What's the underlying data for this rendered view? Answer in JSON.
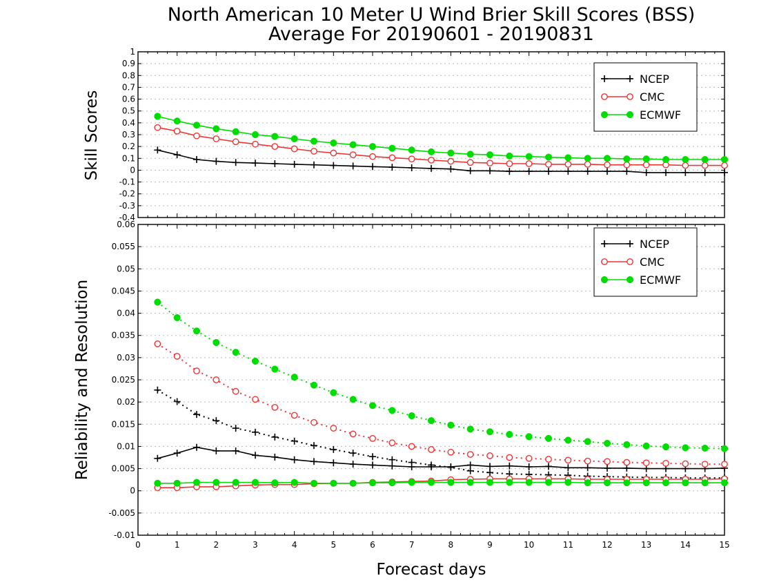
{
  "chart_data": [
    {
      "type": "line",
      "title": "North American 10 Meter U Wind Brier Skill Scores (BSS)",
      "subtitle": "Average For 20190601 - 20190831",
      "xlabel": "",
      "ylabel": "Skill Scores",
      "xlim": [
        0,
        15
      ],
      "ylim": [
        -0.4,
        1
      ],
      "x_ticks": [
        0,
        1,
        2,
        3,
        4,
        5,
        6,
        7,
        8,
        9,
        10,
        11,
        12,
        13,
        14,
        15
      ],
      "y_ticks": [
        -0.4,
        -0.3,
        -0.2,
        -0.1,
        0,
        0.1,
        0.2,
        0.3,
        0.4,
        0.5,
        0.6,
        0.7,
        0.8,
        0.9,
        1
      ],
      "y_tick_labels": [
        "-0.4",
        "-0.3",
        "-0.2",
        "-0.1",
        "0",
        "0.1",
        "0.2",
        "0.3",
        "0.4",
        "0.5",
        "0.6",
        "0.7",
        "0.8",
        "0.9",
        "1"
      ],
      "grid": true,
      "legend_position": "top-right",
      "x": [
        0.5,
        1,
        1.5,
        2,
        2.5,
        3,
        3.5,
        4,
        4.5,
        5,
        5.5,
        6,
        6.5,
        7,
        7.5,
        8,
        8.5,
        9,
        9.5,
        10,
        10.5,
        11,
        11.5,
        12,
        12.5,
        13,
        13.5,
        14,
        14.5,
        15
      ],
      "series": [
        {
          "name": "NCEP",
          "color": "#000000",
          "marker": "plus",
          "line": "solid",
          "values": [
            0.17,
            0.13,
            0.09,
            0.075,
            0.065,
            0.06,
            0.055,
            0.05,
            0.045,
            0.04,
            0.035,
            0.03,
            0.025,
            0.02,
            0.015,
            0.01,
            -0.005,
            -0.005,
            -0.01,
            -0.01,
            -0.01,
            -0.01,
            -0.01,
            -0.01,
            -0.01,
            -0.02,
            -0.02,
            -0.02,
            -0.02,
            -0.02
          ]
        },
        {
          "name": "CMC",
          "color": "#ee3333",
          "marker": "open-circle",
          "line": "solid",
          "values": [
            0.36,
            0.33,
            0.29,
            0.265,
            0.24,
            0.22,
            0.2,
            0.18,
            0.16,
            0.145,
            0.13,
            0.115,
            0.105,
            0.095,
            0.085,
            0.075,
            0.065,
            0.06,
            0.055,
            0.055,
            0.05,
            0.05,
            0.05,
            0.045,
            0.045,
            0.045,
            0.045,
            0.04,
            0.04,
            0.04
          ]
        },
        {
          "name": "ECMWF",
          "color": "#00dd00",
          "marker": "filled-circle",
          "line": "solid",
          "values": [
            0.455,
            0.415,
            0.38,
            0.35,
            0.325,
            0.3,
            0.285,
            0.265,
            0.245,
            0.23,
            0.215,
            0.2,
            0.185,
            0.17,
            0.155,
            0.145,
            0.135,
            0.13,
            0.12,
            0.115,
            0.11,
            0.105,
            0.1,
            0.1,
            0.095,
            0.095,
            0.09,
            0.09,
            0.09,
            0.09
          ]
        }
      ]
    },
    {
      "type": "line",
      "title": "",
      "xlabel": "Forecast days",
      "ylabel": "Reliability and Resolution",
      "xlim": [
        0,
        15
      ],
      "ylim": [
        -0.01,
        0.06
      ],
      "x_ticks": [
        0,
        1,
        2,
        3,
        4,
        5,
        6,
        7,
        8,
        9,
        10,
        11,
        12,
        13,
        14,
        15
      ],
      "y_ticks": [
        -0.01,
        -0.005,
        0,
        0.005,
        0.01,
        0.015,
        0.02,
        0.025,
        0.03,
        0.035,
        0.04,
        0.045,
        0.05,
        0.055,
        0.06
      ],
      "y_tick_labels": [
        "-0.01",
        "-0.005",
        "0",
        "0.005",
        "0.01",
        "0.015",
        "0.02",
        "0.025",
        "0.03",
        "0.035",
        "0.04",
        "0.045",
        "0.05",
        "0.055",
        "0.06"
      ],
      "grid": true,
      "legend_position": "top-right",
      "x": [
        0.5,
        1,
        1.5,
        2,
        2.5,
        3,
        3.5,
        4,
        4.5,
        5,
        5.5,
        6,
        6.5,
        7,
        7.5,
        8,
        8.5,
        9,
        9.5,
        10,
        10.5,
        11,
        11.5,
        12,
        12.5,
        13,
        13.5,
        14,
        14.5,
        15
      ],
      "series": [
        {
          "name": "NCEP",
          "color": "#000000",
          "marker": "plus",
          "line": "solid",
          "values": [
            0.0073,
            0.0085,
            0.0098,
            0.009,
            0.009,
            0.008,
            0.0076,
            0.007,
            0.0066,
            0.0063,
            0.006,
            0.0058,
            0.0056,
            0.0054,
            0.0054,
            0.0054,
            0.0058,
            0.0055,
            0.0056,
            0.0054,
            0.0055,
            0.0052,
            0.0052,
            0.0051,
            0.0051,
            0.005,
            0.005,
            0.005,
            0.005,
            0.0051
          ]
        },
        {
          "name": "",
          "color": "#000000",
          "marker": "plus",
          "line": "dotted",
          "values": [
            0.0227,
            0.0201,
            0.0172,
            0.0158,
            0.0141,
            0.0132,
            0.0121,
            0.0112,
            0.0102,
            0.0093,
            0.0085,
            0.0077,
            0.007,
            0.0064,
            0.0058,
            0.0053,
            0.0045,
            0.0041,
            0.0038,
            0.0037,
            0.0036,
            0.0035,
            0.0033,
            0.0032,
            0.0031,
            0.003,
            0.003,
            0.0029,
            0.0029,
            0.0029
          ]
        },
        {
          "name": "CMC",
          "color": "#ee3333",
          "marker": "open-circle",
          "line": "solid",
          "values": [
            0.0007,
            0.0007,
            0.0009,
            0.0009,
            0.0011,
            0.0013,
            0.0014,
            0.0014,
            0.0016,
            0.0017,
            0.0017,
            0.0019,
            0.002,
            0.0021,
            0.0022,
            0.0025,
            0.0026,
            0.0027,
            0.0027,
            0.0027,
            0.0027,
            0.0027,
            0.0026,
            0.0026,
            0.0026,
            0.0026,
            0.0026,
            0.0026,
            0.0026,
            0.0027
          ]
        },
        {
          "name": "",
          "color": "#ee3333",
          "marker": "open-circle",
          "line": "dotted",
          "values": [
            0.0331,
            0.0303,
            0.027,
            0.025,
            0.0224,
            0.0206,
            0.0188,
            0.017,
            0.0154,
            0.0141,
            0.0128,
            0.0118,
            0.0108,
            0.01,
            0.0093,
            0.0087,
            0.0082,
            0.0079,
            0.0075,
            0.0073,
            0.0071,
            0.0069,
            0.0067,
            0.0066,
            0.0064,
            0.0063,
            0.0062,
            0.0061,
            0.006,
            0.006
          ]
        },
        {
          "name": "ECMWF",
          "color": "#00dd00",
          "marker": "filled-circle",
          "line": "solid",
          "values": [
            0.0017,
            0.0017,
            0.0019,
            0.0019,
            0.0019,
            0.0019,
            0.0018,
            0.0019,
            0.0017,
            0.0017,
            0.0017,
            0.0018,
            0.0018,
            0.0019,
            0.0019,
            0.0019,
            0.0019,
            0.0019,
            0.0019,
            0.0019,
            0.0019,
            0.0019,
            0.0018,
            0.0018,
            0.0018,
            0.0018,
            0.0018,
            0.0018,
            0.0018,
            0.0018
          ]
        },
        {
          "name": "",
          "color": "#00dd00",
          "marker": "filled-circle",
          "line": "dotted",
          "values": [
            0.0425,
            0.039,
            0.036,
            0.0334,
            0.0312,
            0.0292,
            0.0274,
            0.0256,
            0.0238,
            0.0221,
            0.0206,
            0.0192,
            0.0181,
            0.0169,
            0.0158,
            0.0148,
            0.0139,
            0.0133,
            0.0127,
            0.0122,
            0.0118,
            0.0114,
            0.0111,
            0.0107,
            0.0104,
            0.0101,
            0.0099,
            0.0097,
            0.0096,
            0.0095
          ]
        }
      ]
    }
  ]
}
